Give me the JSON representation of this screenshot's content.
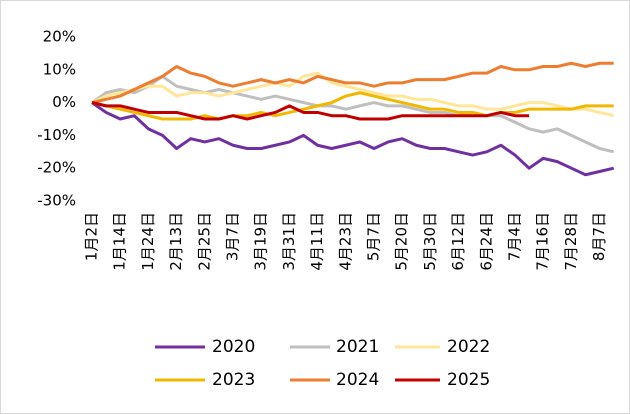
{
  "chart_data": {
    "type": "line",
    "categories": [
      "1月2日",
      null,
      "1月14日",
      null,
      "1月24日",
      null,
      "2月13日",
      null,
      "2月25日",
      null,
      "3月7日",
      null,
      "3月19日",
      null,
      "3月31日",
      null,
      "4月11日",
      null,
      "4月23日",
      null,
      "5月7日",
      null,
      "5月20日",
      null,
      "5月30日",
      null,
      "6月12日",
      null,
      "6月24日",
      null,
      "7月4日",
      null,
      "7月16日",
      null,
      "7月28日",
      null,
      "8月7日",
      null
    ],
    "series": [
      {
        "name": "2020",
        "color": "#7030a0",
        "values": [
          0,
          -3,
          -5,
          -4,
          -8,
          -10,
          -14,
          -11,
          -12,
          -11,
          -13,
          -14,
          -14,
          -13,
          -12,
          -10,
          -13,
          -14,
          -13,
          -12,
          -14,
          -12,
          -11,
          -13,
          -14,
          -14,
          -15,
          -16,
          -15,
          -13,
          -16,
          -20,
          -17,
          -18,
          -20,
          -22,
          -21,
          -20
        ]
      },
      {
        "name": "2021",
        "color": "#bfbfbf",
        "values": [
          0,
          3,
          4,
          3,
          5,
          8,
          5,
          4,
          3,
          4,
          3,
          2,
          1,
          2,
          1,
          0,
          -1,
          -1,
          -2,
          -1,
          0,
          -1,
          -1,
          -2,
          -3,
          -3,
          -4,
          -3,
          -4,
          -4,
          -6,
          -8,
          -9,
          -8,
          -10,
          -12,
          -14,
          -15
        ]
      },
      {
        "name": "2022",
        "color": "#ffe699",
        "values": [
          0,
          2,
          3,
          4,
          5,
          5,
          2,
          3,
          3,
          2,
          3,
          4,
          5,
          6,
          5,
          8,
          9,
          6,
          5,
          4,
          3,
          2,
          2,
          1,
          1,
          0,
          -1,
          -1,
          -2,
          -2,
          -1,
          0,
          0,
          -1,
          -2,
          -2,
          -3,
          -4
        ]
      },
      {
        "name": "2023",
        "color": "#f0b800",
        "values": [
          0,
          -1,
          -2,
          -3,
          -4,
          -5,
          -5,
          -5,
          -4,
          -5,
          -4,
          -4,
          -3,
          -4,
          -3,
          -2,
          -1,
          0,
          2,
          3,
          2,
          1,
          0,
          -1,
          -2,
          -2,
          -3,
          -3,
          -4,
          -3,
          -3,
          -2,
          -2,
          -2,
          -2,
          -1,
          -1,
          -1
        ]
      },
      {
        "name": "2024",
        "color": "#ed7d31",
        "values": [
          0,
          1,
          2,
          4,
          6,
          8,
          11,
          9,
          8,
          6,
          5,
          6,
          7,
          6,
          7,
          6,
          8,
          7,
          6,
          6,
          5,
          6,
          6,
          7,
          7,
          7,
          8,
          9,
          9,
          11,
          10,
          10,
          11,
          11,
          12,
          11,
          12,
          12
        ]
      },
      {
        "name": "2025",
        "color": "#c00000",
        "values": [
          0,
          -1,
          -1,
          -2,
          -3,
          -3,
          -3,
          -4,
          -5,
          -5,
          -4,
          -5,
          -4,
          -3,
          -1,
          -3,
          -3,
          -4,
          -4,
          -5,
          -5,
          -5,
          -4,
          -4,
          -4,
          -4,
          -4,
          -4,
          -4,
          -3,
          -4,
          -4,
          null,
          null,
          null,
          null,
          null,
          null
        ]
      }
    ],
    "ylim": [
      -30,
      20
    ],
    "yticks": [
      {
        "value": -30,
        "label": "-30%"
      },
      {
        "value": -20,
        "label": "-20%"
      },
      {
        "value": -10,
        "label": "-10%"
      },
      {
        "value": 0,
        "label": "0%"
      },
      {
        "value": 10,
        "label": "10%"
      },
      {
        "value": 20,
        "label": "20%"
      }
    ]
  }
}
